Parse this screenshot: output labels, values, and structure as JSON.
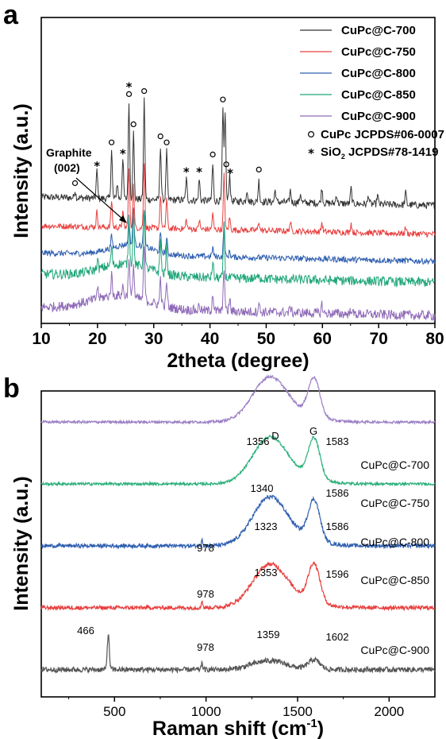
{
  "chart_data": [
    {
      "panel": "a",
      "type": "line",
      "xlabel": "2theta (degree)",
      "ylabel": "Intensity (a.u.)",
      "xlim": [
        10,
        80
      ],
      "xticks": [
        "10",
        "20",
        "30",
        "40",
        "50",
        "60",
        "70",
        "80"
      ],
      "series": [
        {
          "name": "CuPc@C-700",
          "color": "#333333",
          "offset": 4.0,
          "noise": 0.12,
          "peaks": [
            [
              16,
              0.25
            ],
            [
              19.9,
              0.9
            ],
            [
              22.5,
              1.6
            ],
            [
              23.5,
              0.5
            ],
            [
              24.5,
              1.3
            ],
            [
              25.6,
              3.2
            ],
            [
              26.4,
              2.2
            ],
            [
              28.3,
              3.3
            ],
            [
              31.2,
              1.8
            ],
            [
              32.3,
              1.6
            ],
            [
              35.8,
              0.7
            ],
            [
              38.1,
              0.7
            ],
            [
              40.5,
              1.2
            ],
            [
              42.3,
              3.0
            ],
            [
              42.7,
              3.0
            ],
            [
              43.5,
              0.9
            ],
            [
              46.6,
              0.4
            ],
            [
              48.7,
              0.7
            ],
            [
              51.6,
              0.4
            ],
            [
              54.3,
              0.4
            ],
            [
              56.1,
              0.3
            ],
            [
              59.9,
              0.5
            ],
            [
              62.5,
              0.3
            ],
            [
              65.1,
              0.5
            ],
            [
              68.2,
              0.3
            ],
            [
              69.8,
              0.3
            ],
            [
              74.8,
              0.4
            ]
          ]
        },
        {
          "name": "CuPc@C-750",
          "color": "#e8403f",
          "offset": 3.05,
          "noise": 0.1,
          "peaks": [
            [
              19.9,
              0.5
            ],
            [
              22.5,
              0.9
            ],
            [
              24.5,
              0.5
            ],
            [
              25.6,
              1.9
            ],
            [
              26.4,
              1.4
            ],
            [
              28.3,
              2.2
            ],
            [
              31.2,
              1.1
            ],
            [
              32.3,
              1.0
            ],
            [
              35.8,
              0.3
            ],
            [
              38.1,
              0.3
            ],
            [
              40.5,
              0.5
            ],
            [
              42.5,
              1.8
            ],
            [
              43.5,
              0.4
            ],
            [
              48.7,
              0.3
            ],
            [
              54.3,
              0.3
            ],
            [
              59.9,
              0.3
            ],
            [
              65.1,
              0.3
            ],
            [
              74.8,
              0.2
            ]
          ]
        },
        {
          "name": "CuPc@C-800",
          "color": "#2f5fb0",
          "offset": 2.15,
          "noise": 0.1,
          "hump": [
            26,
            5,
            0.35
          ],
          "peaks": [
            [
              22.5,
              0.4
            ],
            [
              25.6,
              0.9
            ],
            [
              26.4,
              1.2
            ],
            [
              28.3,
              1.3
            ],
            [
              31.2,
              0.6
            ],
            [
              32.3,
              0.5
            ],
            [
              40.5,
              0.3
            ],
            [
              42.5,
              1.1
            ],
            [
              43.5,
              0.2
            ]
          ]
        },
        {
          "name": "CuPc@C-850",
          "color": "#1fa67a",
          "offset": 1.45,
          "noise": 0.16,
          "hump": [
            25,
            6,
            0.4
          ],
          "peaks": [
            [
              20,
              0.3
            ],
            [
              22.5,
              0.6
            ],
            [
              25.6,
              1.5
            ],
            [
              26.4,
              1.7
            ],
            [
              28.3,
              2.0
            ],
            [
              31.2,
              1.1
            ],
            [
              32.3,
              0.9
            ],
            [
              40.5,
              0.5
            ],
            [
              42.5,
              1.7
            ],
            [
              48.7,
              0.2
            ]
          ]
        },
        {
          "name": "CuPc@C-900",
          "color": "#8f6ab8",
          "offset": 0.35,
          "noise": 0.16,
          "hump": [
            24,
            7,
            0.45
          ],
          "peaks": [
            [
              20,
              0.4
            ],
            [
              22.5,
              0.7
            ],
            [
              24.5,
              0.3
            ],
            [
              25.6,
              1.3
            ],
            [
              26.4,
              1.1
            ],
            [
              28.3,
              1.8
            ],
            [
              31.2,
              0.9
            ],
            [
              32.3,
              0.8
            ],
            [
              38.1,
              0.2
            ],
            [
              40.5,
              0.6
            ],
            [
              42.5,
              1.5
            ],
            [
              43.5,
              0.4
            ],
            [
              48.7,
              0.3
            ],
            [
              54.3,
              0.2
            ],
            [
              59.9,
              0.3
            ],
            [
              65.1,
              0.2
            ]
          ]
        }
      ],
      "legend": {
        "entries": [
          "CuPc@C-700",
          "CuPc@C-750",
          "CuPc@C-800",
          "CuPc@C-850",
          "CuPc@C-900"
        ],
        "reference_1": "CuPc JCPDS#06-0007",
        "reference_2_prefix": "SiO",
        "reference_2_sub": "2",
        "reference_2_suffix": " JCPDS#78-1419",
        "symbol_circle": "○",
        "symbol_star": "*",
        "placement": "top-right"
      },
      "annotation": {
        "line1": "Graphite",
        "line2": "(002)"
      },
      "markers_circle_x": [
        16,
        22.5,
        26.4,
        28.3,
        31.2,
        32.3,
        40.5,
        42.3,
        42.9,
        48.7,
        25.6
      ],
      "markers_star_x": [
        19.9,
        24.5,
        25.6,
        35.8,
        38.1,
        43.6
      ]
    },
    {
      "panel": "b",
      "type": "line",
      "xlabel_main": "Raman shift (cm",
      "xlabel_sup": "-1",
      "xlabel_end": ")",
      "ylabel": "Intensity (a.u.)",
      "xlim": [
        100,
        2250
      ],
      "xticks": [
        "500",
        "1000",
        "1500",
        "2000"
      ],
      "band_labels": {
        "D": "D",
        "G": "G"
      },
      "series": [
        {
          "name": "CuPc@C-700",
          "color": "#9b7fc4",
          "baseline": 3.95,
          "d": 1.1,
          "g": 1.2,
          "noise": 0.02,
          "labels": [
            "1356",
            "1583"
          ]
        },
        {
          "name": "CuPc@C-750",
          "color": "#2bb07a",
          "baseline": 3.0,
          "d": 1.15,
          "g": 1.25,
          "noise": 0.02,
          "labels": [
            "1340",
            "1586"
          ]
        },
        {
          "name": "CuPc@C-800",
          "color": "#2f5fb0",
          "baseline": 2.05,
          "d": 1.2,
          "g": 1.25,
          "noise": 0.03,
          "labels": [
            "978",
            "1323",
            "1586"
          ]
        },
        {
          "name": "CuPc@C-850",
          "color": "#e8403f",
          "baseline": 1.1,
          "d": 1.05,
          "g": 1.2,
          "noise": 0.03,
          "labels": [
            "978",
            "1353",
            "1596"
          ]
        },
        {
          "name": "CuPc@C-900",
          "color": "#555555",
          "baseline": 0.15,
          "d": 0.25,
          "g": 0.3,
          "noise": 0.04,
          "sharp": 1.2,
          "labels": [
            "466",
            "978",
            "1359",
            "1602"
          ]
        }
      ]
    }
  ]
}
